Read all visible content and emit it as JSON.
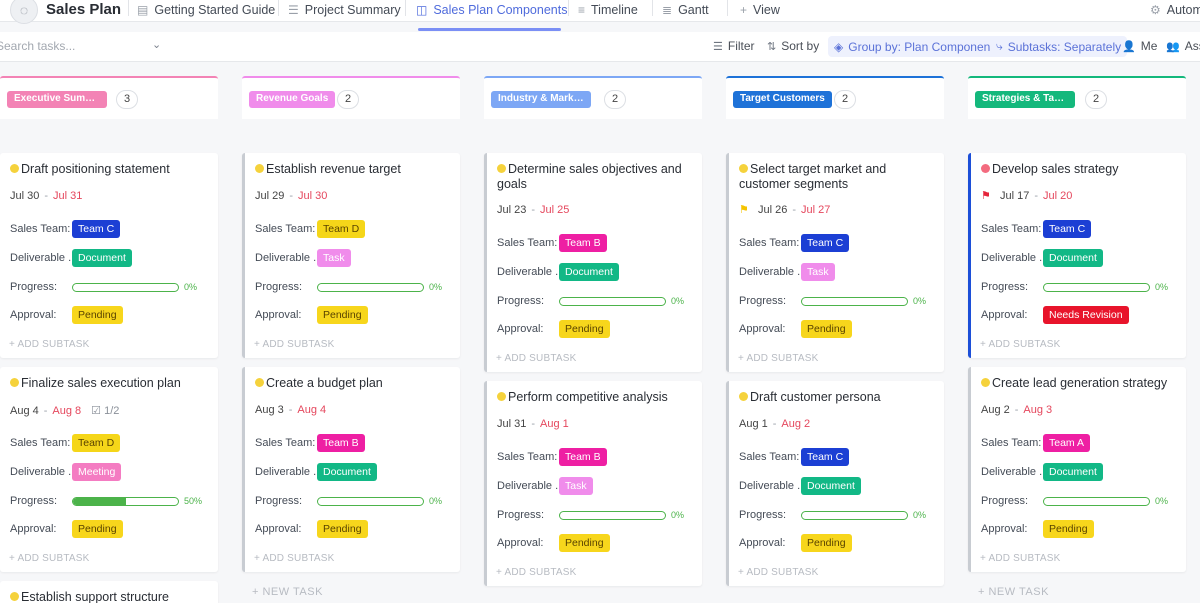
{
  "app": {
    "title": "Sales Plan"
  },
  "tabs": [
    {
      "label": "Getting Started Guide",
      "icon": "doc-icon"
    },
    {
      "label": "Project Summary",
      "icon": "list-icon"
    },
    {
      "label": "Sales Plan Components",
      "icon": "board-icon",
      "active": true
    },
    {
      "label": "Timeline",
      "icon": "timeline-icon"
    },
    {
      "label": "Gantt",
      "icon": "gantt-icon"
    },
    {
      "label": "View",
      "icon": "plus-icon"
    },
    {
      "label": "Autom",
      "icon": "automation-icon"
    }
  ],
  "toolbar": {
    "search_placeholder": "Search tasks...",
    "filter": "Filter",
    "sort": "Sort by",
    "group_by": "Group by: Plan Components",
    "subtasks": "Subtasks: Separately",
    "me": "Me",
    "assignees": "Assi"
  },
  "colors": {
    "accent": "#7b8ff5",
    "team_c": "#1c3fd4",
    "team_b_a": "#ee1fa3",
    "team_d": "#f5d619",
    "document": "#12b886",
    "task": "#f08ceb",
    "meeting": "#f47cc2",
    "pending": "#f7d61c",
    "needs_revision": "#e8142b",
    "progress": "#4cb34a"
  },
  "labels": {
    "sales_team": "Sales Team:",
    "deliverable": "Deliverable ...",
    "progress": "Progress:",
    "approval": "Approval:",
    "add_subtask": "+ ADD SUBTASK",
    "new_task": "+ NEW TASK"
  },
  "columns": [
    {
      "name": "Executive Summary",
      "count": "3",
      "color": "#f383b5",
      "cards": [
        {
          "title": "Draft positioning statement",
          "status": "in-progress",
          "start": "Jul 30",
          "due": "Jul 31",
          "team": "Team C",
          "deliverable": "Document",
          "progress": 0,
          "progress_label": "0%",
          "approval": "Pending"
        },
        {
          "title": "Finalize sales execution plan",
          "status": "in-progress",
          "start": "Aug 4",
          "due": "Aug 8",
          "subtasks": "1/2",
          "team": "Team D",
          "deliverable": "Meeting",
          "progress": 0.5,
          "progress_label": "50%",
          "approval": "Pending"
        },
        {
          "title": "Establish support structure",
          "status": "in-progress"
        }
      ]
    },
    {
      "name": "Revenue Goals",
      "count": "2",
      "color": "#f08ceb",
      "cards": [
        {
          "title": "Establish revenue target",
          "status": "in-progress",
          "start": "Jul 29",
          "due": "Jul 30",
          "team": "Team D",
          "deliverable": "Task",
          "progress": 0,
          "progress_label": "0%",
          "approval": "Pending"
        },
        {
          "title": "Create a budget plan",
          "status": "in-progress",
          "start": "Aug 3",
          "due": "Aug 4",
          "team": "Team B",
          "deliverable": "Document",
          "progress": 0,
          "progress_label": "0%",
          "approval": "Pending"
        }
      ]
    },
    {
      "name": "Industry & Market...",
      "count": "2",
      "color": "#7da7f5",
      "cards": [
        {
          "title": "Determine sales objectives and goals",
          "status": "in-progress",
          "start": "Jul 23",
          "due": "Jul 25",
          "team": "Team B",
          "deliverable": "Document",
          "progress": 0,
          "progress_label": "0%",
          "approval": "Pending"
        },
        {
          "title": "Perform competitive analysis",
          "status": "in-progress",
          "start": "Jul 31",
          "due": "Aug 1",
          "team": "Team B",
          "deliverable": "Task",
          "progress": 0,
          "progress_label": "0%",
          "approval": "Pending"
        }
      ]
    },
    {
      "name": "Target Customers",
      "count": "2",
      "color": "#1e72d8",
      "cards": [
        {
          "title": "Select target market and customer segments",
          "status": "in-progress",
          "start": "Jul 26",
          "due": "Jul 27",
          "flag": "yellow",
          "team": "Team C",
          "deliverable": "Task",
          "progress": 0,
          "progress_label": "0%",
          "approval": "Pending"
        },
        {
          "title": "Draft customer persona",
          "status": "in-progress",
          "start": "Aug 1",
          "due": "Aug 2",
          "team": "Team C",
          "deliverable": "Document",
          "progress": 0,
          "progress_label": "0%",
          "approval": "Pending"
        }
      ]
    },
    {
      "name": "Strategies & Tactics",
      "count": "2",
      "color": "#14b87c",
      "cards": [
        {
          "title": "Develop sales strategy",
          "status": "blocked",
          "start": "Jul 17",
          "due": "Jul 20",
          "flag": "red",
          "team": "Team C",
          "deliverable": "Document",
          "progress": 0,
          "progress_label": "0%",
          "approval": "Needs Revision"
        },
        {
          "title": "Create lead generation strategy",
          "status": "in-progress",
          "start": "Aug 2",
          "due": "Aug 3",
          "team": "Team A",
          "deliverable": "Document",
          "progress": 0,
          "progress_label": "0%",
          "approval": "Pending"
        }
      ]
    }
  ]
}
